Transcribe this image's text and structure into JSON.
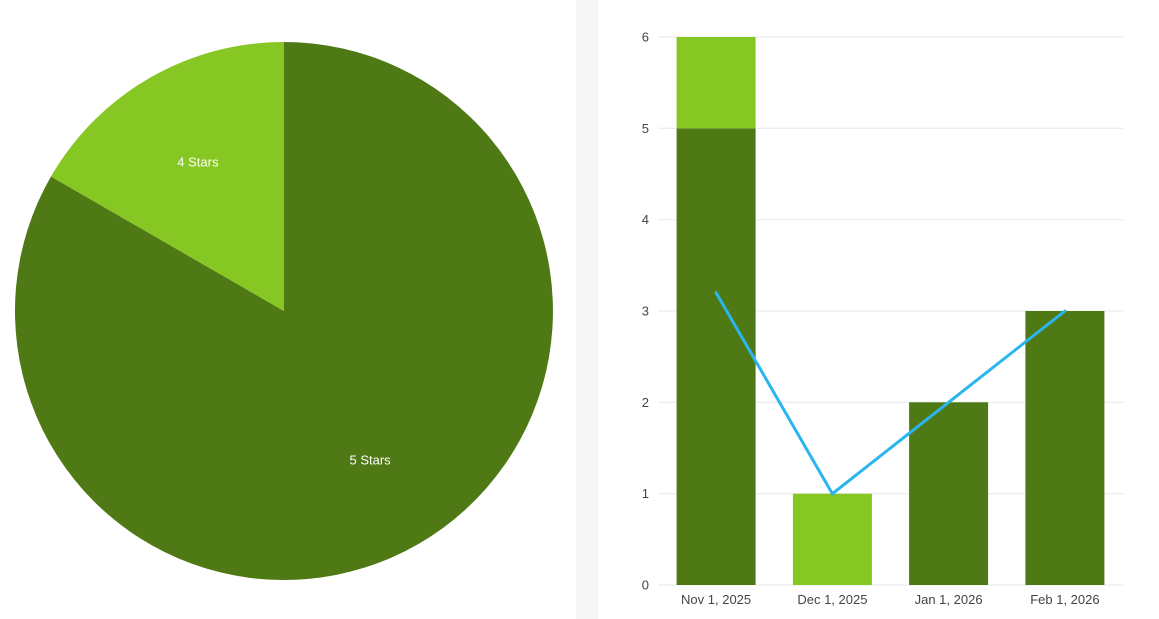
{
  "page": {
    "background_color": "#ffffff",
    "divider_color": "#f6f6f6"
  },
  "chart_data": [
    {
      "type": "pie",
      "title": "",
      "legend": "none",
      "direction": "clockwise",
      "start_angle_deg": 0,
      "label_color": "#ffffff",
      "slices": [
        {
          "label": "5 Stars",
          "value": 10,
          "color": "#4f7914"
        },
        {
          "label": "4 Stars",
          "value": 2,
          "color": "#87c723"
        }
      ]
    },
    {
      "type": "bar",
      "title": "",
      "legend": "none",
      "stacked": true,
      "grid": true,
      "categories": [
        "Nov 1, 2025",
        "Dec 1, 2025",
        "Jan 1, 2026",
        "Feb 1, 2026"
      ],
      "series": [
        {
          "name": "5 Stars",
          "render": "bar",
          "color": "#4f7914",
          "values": [
            5,
            0,
            2,
            3
          ]
        },
        {
          "name": "4 Stars",
          "render": "bar",
          "color": "#87c723",
          "values": [
            1,
            1,
            0,
            0
          ]
        },
        {
          "name": "trend",
          "render": "line",
          "color": "#29b6f0",
          "values": [
            3.2,
            1,
            2,
            3
          ]
        }
      ],
      "ylim": [
        0,
        6
      ],
      "yticks": [
        0,
        1,
        2,
        3,
        4,
        5,
        6
      ],
      "xlabel": "",
      "ylabel": "",
      "grid_color": "#e7e7e7",
      "axis_text_color": "#444444"
    }
  ]
}
